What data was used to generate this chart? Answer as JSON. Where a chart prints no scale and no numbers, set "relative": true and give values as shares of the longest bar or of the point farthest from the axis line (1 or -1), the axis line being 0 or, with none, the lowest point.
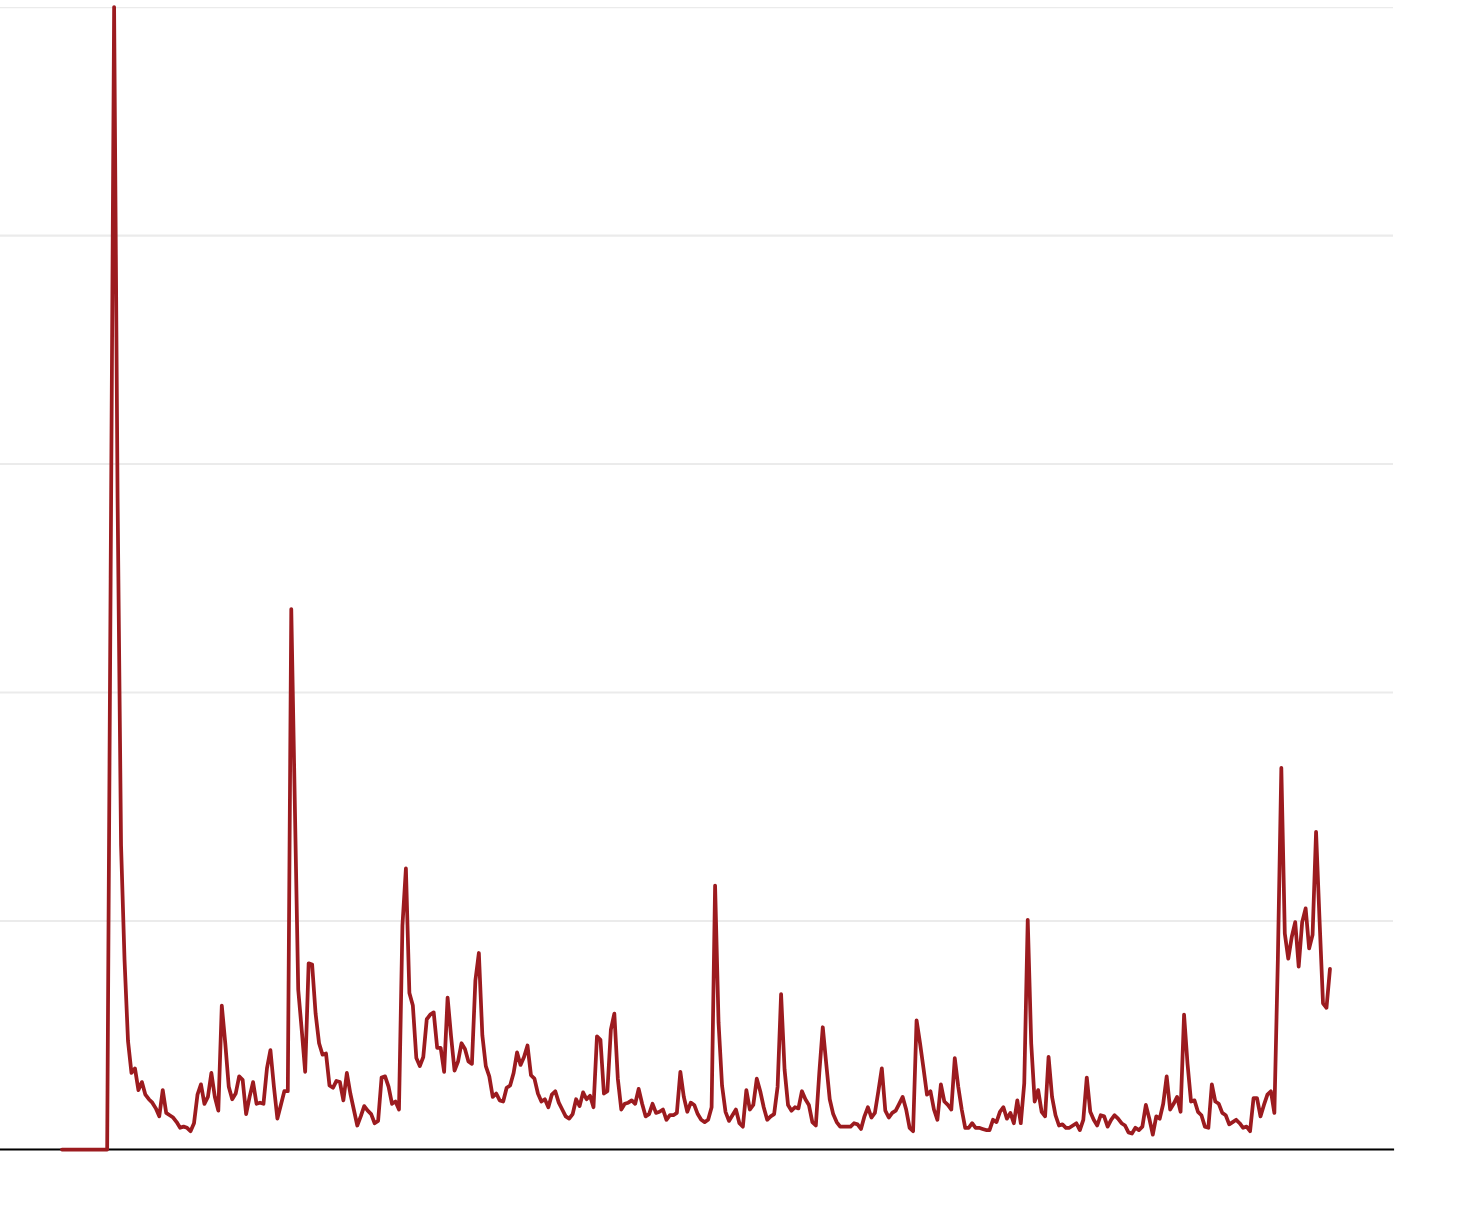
{
  "chart_data": {
    "type": "line",
    "relative": true,
    "grid": "y",
    "categories": [
      null,
      null,
      null,
      null,
      null,
      null,
      null,
      null,
      null,
      null,
      null,
      null,
      null,
      null,
      null,
      null,
      null,
      null,
      null,
      null,
      null,
      null,
      null,
      null,
      null,
      null,
      null,
      null,
      null,
      null,
      null,
      null,
      null,
      null,
      null,
      null,
      null,
      null,
      null,
      null,
      null,
      null,
      null,
      null,
      null,
      null,
      null,
      null,
      null,
      null,
      null,
      null,
      null,
      null,
      null,
      null,
      null,
      null,
      null,
      null,
      null,
      null,
      null,
      null,
      null,
      null,
      null,
      null,
      null,
      null,
      null,
      null,
      null,
      null,
      null,
      null,
      null,
      null,
      null,
      null,
      null,
      null,
      null,
      null,
      null,
      null,
      null,
      null,
      null,
      null,
      null,
      null,
      null,
      null,
      null,
      null,
      null,
      null,
      null,
      null,
      null,
      null,
      null,
      null,
      null,
      null,
      null,
      null,
      null,
      null,
      null,
      null,
      null,
      null,
      null,
      null,
      null,
      null,
      null,
      null,
      null,
      null,
      null,
      null,
      null,
      null,
      null,
      null,
      null,
      null,
      null,
      null,
      null,
      null,
      null,
      null,
      null,
      null,
      null,
      null,
      null,
      null,
      null,
      null,
      null,
      null,
      null,
      null,
      null,
      null,
      null,
      null,
      null,
      null,
      null,
      null,
      null,
      null,
      null,
      null,
      null,
      null,
      null,
      null,
      null,
      null,
      null,
      null,
      null,
      null,
      null,
      null,
      null,
      null,
      null,
      null,
      null,
      null,
      null,
      null,
      null,
      null,
      null,
      null,
      null,
      null,
      null,
      null,
      null,
      null,
      null,
      null,
      null,
      null,
      null,
      null,
      null,
      null,
      null,
      null,
      null,
      null,
      null,
      null,
      null,
      null,
      null,
      null,
      null,
      null,
      null,
      null,
      null,
      null,
      null,
      null,
      null,
      null,
      null,
      null,
      null,
      null,
      null,
      null,
      null,
      null,
      null,
      null,
      null,
      null,
      null,
      null,
      null,
      null,
      null,
      null,
      null,
      null,
      null,
      null,
      null,
      null,
      null,
      null,
      null,
      null,
      null,
      null,
      null,
      null,
      null,
      null,
      null,
      null,
      null,
      null,
      null,
      null,
      null,
      null,
      null,
      null,
      null,
      null,
      null,
      null,
      null,
      null,
      null,
      null,
      null,
      null,
      null,
      null,
      null,
      null,
      null,
      null,
      null,
      null,
      null,
      null,
      null,
      null,
      null,
      null,
      null,
      null,
      null,
      null,
      null,
      null,
      null,
      null,
      null,
      null,
      null,
      null,
      null,
      null,
      null,
      null,
      null,
      null,
      null,
      null,
      null,
      null,
      null,
      null,
      null,
      null,
      null,
      null,
      null,
      null,
      null,
      null,
      null,
      null,
      null,
      null,
      null,
      null,
      null,
      null,
      null,
      null,
      null,
      null,
      null,
      null,
      null,
      null,
      null,
      null,
      null,
      null,
      null,
      null,
      null,
      null,
      null,
      null,
      null,
      null,
      null,
      null,
      null,
      null,
      null,
      null,
      null,
      null,
      null,
      null,
      null,
      null,
      null,
      null,
      null,
      null,
      null,
      null,
      null,
      null
    ],
    "series": [
      {
        "color": "#9c1b1f",
        "values": [
          0,
          0,
          0,
          0,
          0,
          0,
          0,
          0,
          0,
          0,
          0,
          0,
          0,
          0,
          0.5,
          1.0,
          0.57,
          0.266,
          0.166,
          0.095,
          0.067,
          0.071,
          0.052,
          0.059,
          0.048,
          0.044,
          0.041,
          0.036,
          0.029,
          0.052,
          0.032,
          0.03,
          0.028,
          0.024,
          0.019,
          0.02,
          0.019,
          0.016,
          0.023,
          0.048,
          0.057,
          0.04,
          0.046,
          0.067,
          0.046,
          0.034,
          0.126,
          0.093,
          0.055,
          0.044,
          0.049,
          0.064,
          0.061,
          0.031,
          0.046,
          0.059,
          0.04,
          0.041,
          0.04,
          0.071,
          0.087,
          0.055,
          0.027,
          0.039,
          0.051,
          0.051,
          0.473,
          0.306,
          0.14,
          0.105,
          0.068,
          0.163,
          0.162,
          0.119,
          0.093,
          0.083,
          0.084,
          0.056,
          0.054,
          0.06,
          0.059,
          0.043,
          0.067,
          0.049,
          0.035,
          0.021,
          0.029,
          0.038,
          0.034,
          0.031,
          0.023,
          0.025,
          0.063,
          0.064,
          0.055,
          0.04,
          0.042,
          0.035,
          0.196,
          0.246,
          0.137,
          0.126,
          0.08,
          0.073,
          0.081,
          0.114,
          0.118,
          0.12,
          0.089,
          0.089,
          0.068,
          0.133,
          0.099,
          0.069,
          0.077,
          0.093,
          0.088,
          0.077,
          0.075,
          0.148,
          0.172,
          0.1,
          0.073,
          0.064,
          0.046,
          0.049,
          0.043,
          0.042,
          0.054,
          0.056,
          0.067,
          0.085,
          0.074,
          0.081,
          0.091,
          0.065,
          0.062,
          0.049,
          0.042,
          0.044,
          0.037,
          0.048,
          0.051,
          0.041,
          0.035,
          0.029,
          0.027,
          0.031,
          0.044,
          0.038,
          0.05,
          0.044,
          0.047,
          0.037,
          0.099,
          0.096,
          0.049,
          0.051,
          0.105,
          0.119,
          0.062,
          0.035,
          0.04,
          0.041,
          0.043,
          0.04,
          0.053,
          0.04,
          0.029,
          0.031,
          0.04,
          0.032,
          0.033,
          0.035,
          0.026,
          0.03,
          0.03,
          0.032,
          0.068,
          0.046,
          0.033,
          0.041,
          0.039,
          0.031,
          0.026,
          0.024,
          0.026,
          0.037,
          0.231,
          0.111,
          0.056,
          0.033,
          0.025,
          0.03,
          0.035,
          0.023,
          0.02,
          0.052,
          0.035,
          0.039,
          0.062,
          0.051,
          0.037,
          0.026,
          0.029,
          0.031,
          0.055,
          0.136,
          0.07,
          0.039,
          0.034,
          0.037,
          0.036,
          0.051,
          0.044,
          0.039,
          0.024,
          0.021,
          0.067,
          0.107,
          0.075,
          0.044,
          0.031,
          0.024,
          0.02,
          0.02,
          0.02,
          0.02,
          0.023,
          0.022,
          0.018,
          0.029,
          0.037,
          0.028,
          0.032,
          0.051,
          0.071,
          0.034,
          0.028,
          0.032,
          0.034,
          0.04,
          0.046,
          0.035,
          0.019,
          0.016,
          0.113,
          0.093,
          0.071,
          0.048,
          0.051,
          0.035,
          0.026,
          0.057,
          0.042,
          0.039,
          0.035,
          0.08,
          0.055,
          0.035,
          0.019,
          0.019,
          0.023,
          0.019,
          0.019,
          0.018,
          0.017,
          0.017,
          0.026,
          0.024,
          0.033,
          0.037,
          0.027,
          0.032,
          0.023,
          0.043,
          0.023,
          0.058,
          0.201,
          0.093,
          0.042,
          0.052,
          0.033,
          0.029,
          0.081,
          0.046,
          0.03,
          0.021,
          0.022,
          0.019,
          0.019,
          0.021,
          0.023,
          0.017,
          0.026,
          0.063,
          0.033,
          0.026,
          0.021,
          0.03,
          0.029,
          0.02,
          0.026,
          0.03,
          0.027,
          0.023,
          0.021,
          0.015,
          0.014,
          0.019,
          0.017,
          0.02,
          0.039,
          0.027,
          0.013,
          0.029,
          0.027,
          0.04,
          0.064,
          0.035,
          0.04,
          0.046,
          0.033,
          0.118,
          0.075,
          0.042,
          0.043,
          0.033,
          0.03,
          0.02,
          0.019,
          0.057,
          0.042,
          0.04,
          0.032,
          0.03,
          0.022,
          0.024,
          0.026,
          0.023,
          0.019,
          0.02,
          0.016,
          0.045,
          0.045,
          0.029,
          0.039,
          0.048,
          0.051,
          0.032,
          0.166,
          0.334,
          0.189,
          0.167,
          0.186,
          0.199,
          0.16,
          0.199,
          0.211,
          0.176,
          0.188,
          0.278,
          0.201,
          0.128,
          0.124,
          0.158
        ]
      }
    ]
  }
}
